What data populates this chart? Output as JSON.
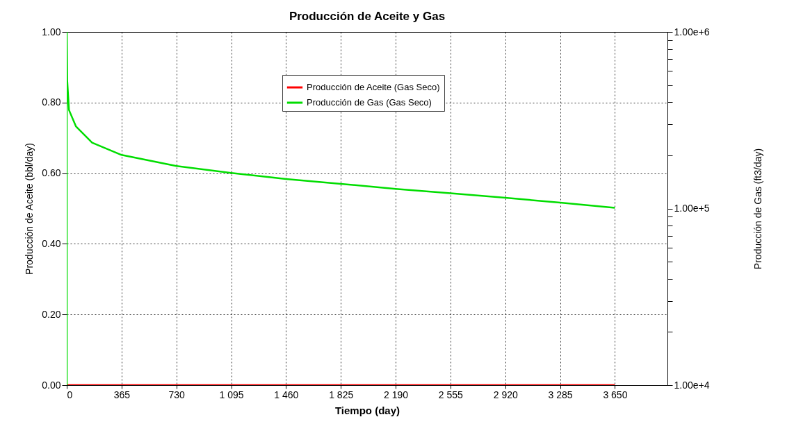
{
  "chart_data": {
    "type": "line",
    "title": "Producción de Aceite y Gas",
    "xlabel": "Tiempo (day)",
    "ylabel": "Producción de Aceite (bbl/day)",
    "y2label": "Producción de Gas (ft3/day)",
    "series": [
      {
        "name": "Producción de Aceite (Gas Seco)",
        "color": "#ff0000",
        "x": [
          0,
          3650
        ],
        "values": [
          0,
          0
        ]
      },
      {
        "name": "Producción de Gas (Gas Seco)",
        "color": "#00dd00",
        "axis": "y2",
        "x": [
          0,
          0,
          3,
          15,
          61,
          169,
          365,
          730,
          1095,
          1460,
          1825,
          2190,
          2555,
          2920,
          3285,
          3650
        ],
        "values": [
          10000,
          1000000,
          534000,
          361000,
          292000,
          236000,
          201000,
          174000,
          159000,
          147000,
          138000,
          129000,
          122000,
          115000,
          108000,
          101000
        ]
      }
    ],
    "xlim": [
      0,
      4000
    ],
    "xticks": [
      0,
      365,
      730,
      {
        "value": 1095,
        "label": "1 095"
      },
      {
        "value": 1460,
        "label": "1 460"
      },
      {
        "value": 1825,
        "label": "1 825"
      },
      {
        "value": 2190,
        "label": "2 190"
      },
      {
        "value": 2555,
        "label": "2 555"
      },
      {
        "value": 2920,
        "label": "2 920"
      },
      {
        "value": 3285,
        "label": "3 285"
      },
      {
        "value": 3650,
        "label": "3 650"
      }
    ],
    "ylim": [
      0,
      1
    ],
    "yticks": [
      {
        "value": 0,
        "label": "0.00"
      },
      {
        "value": 0.2,
        "label": "0.20"
      },
      {
        "value": 0.4,
        "label": "0.40"
      },
      {
        "value": 0.6,
        "label": "0.60"
      },
      {
        "value": 0.8,
        "label": "0.80"
      },
      {
        "value": 1,
        "label": "1.00"
      }
    ],
    "y2lim": [
      10000,
      1000000
    ],
    "y2ticks": [
      {
        "value": 10000,
        "label": "1.00e+4"
      },
      {
        "value": 20000,
        "label": null
      },
      {
        "value": 30000,
        "label": null
      },
      {
        "value": 40000,
        "label": null
      },
      {
        "value": 50000,
        "label": null
      },
      {
        "value": 60000,
        "label": null
      },
      {
        "value": 70000,
        "label": null
      },
      {
        "value": 80000,
        "label": null
      },
      {
        "value": 90000,
        "label": null
      },
      {
        "value": 100000,
        "label": "1.00e+5"
      },
      {
        "value": 200000,
        "label": null
      },
      {
        "value": 300000,
        "label": null
      },
      {
        "value": 400000,
        "label": null
      },
      {
        "value": 500000,
        "label": null
      },
      {
        "value": 600000,
        "label": null
      },
      {
        "value": 700000,
        "label": null
      },
      {
        "value": 800000,
        "label": null
      },
      {
        "value": 900000,
        "label": null
      },
      {
        "value": 1000000,
        "label": "1.00e+6"
      }
    ],
    "log": "y2",
    "grid": true,
    "legend": "top right",
    "line_style": "solid"
  }
}
